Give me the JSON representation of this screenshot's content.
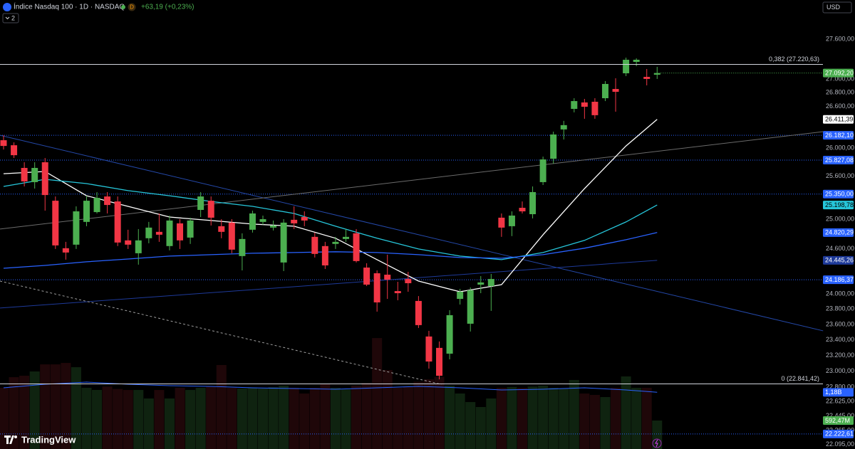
{
  "header": {
    "symbol": "Índice Nasdaq 100 · 1D · NASDAQ",
    "badge": "D",
    "change": "+63,19 (+0,23%)",
    "indicators_count": "2",
    "currency": "USD",
    "brand": "TradingView"
  },
  "chart_data": {
    "type": "candlestick",
    "log_scale": true,
    "ylim": [
      22040,
      28200
    ],
    "yticks": [
      {
        "value": 27600,
        "label": "27.600,00"
      },
      {
        "value": 27000,
        "label": "27.000,00"
      },
      {
        "value": 26800,
        "label": "26.800,00"
      },
      {
        "value": 26600,
        "label": "26.600,00"
      },
      {
        "value": 26000,
        "label": "26.000,00"
      },
      {
        "value": 25600,
        "label": "25.600,00"
      },
      {
        "value": 25000,
        "label": "25.000,00"
      },
      {
        "value": 24600,
        "label": "24.600,00"
      },
      {
        "value": 24000,
        "label": "24.000,00"
      },
      {
        "value": 23800,
        "label": "23.800,00"
      },
      {
        "value": 23600,
        "label": "23.600,00"
      },
      {
        "value": 23400,
        "label": "23.400,00"
      },
      {
        "value": 23200,
        "label": "23.200,00"
      },
      {
        "value": 23000,
        "label": "23.000,00"
      },
      {
        "value": 22800,
        "label": "22.800,00"
      },
      {
        "value": 22625,
        "label": "22.625,00"
      },
      {
        "value": 22445,
        "label": "22.445,00"
      },
      {
        "value": 22265,
        "label": "22.265,00"
      },
      {
        "value": 22095,
        "label": "22.095,00"
      }
    ],
    "series": [
      {
        "up_color": "#4caf50",
        "down_color": "#f23645",
        "last_label": "27.092,20",
        "open": [
          26111,
          26039,
          25717,
          25517,
          25797,
          25258,
          24608,
          24656,
          24966,
          25101,
          25317,
          25248,
          24714,
          24540,
          24743,
          24830,
          24637,
          24946,
          24752,
          25131,
          25258,
          24907,
          24956,
          24502,
          24859,
          24966,
          24888,
          24416,
          24995,
          25033,
          24762,
          24637,
          24666,
          24733,
          24810,
          24348,
          24272,
          24253,
          24036,
          24196,
          23906,
          23444,
          23298,
          23224,
          23933,
          23609,
          24121,
          24102,
          25024,
          24907,
          25160,
          25072,
          25517,
          25847,
          26266,
          26564,
          26658,
          26668,
          26720,
          26856,
          27088,
          27258,
          27035,
          27067
        ],
        "high": [
          26182,
          26080,
          25797,
          25797,
          25857,
          25317,
          24694,
          25180,
          25327,
          25378,
          25378,
          25317,
          24859,
          24868,
          24966,
          25082,
          25053,
          25004,
          25024,
          25378,
          25317,
          25004,
          25004,
          24810,
          25121,
          25053,
          24985,
          25004,
          25180,
          25111,
          24820,
          24694,
          24762,
          24868,
          24868,
          24406,
          24310,
          24521,
          24159,
          24291,
          23970,
          23517,
          23380,
          23785,
          24065,
          24083,
          24234,
          24263,
          25082,
          25111,
          25248,
          25457,
          25877,
          26234,
          26390,
          26720,
          26710,
          26720,
          26972,
          27014,
          27322,
          27311,
          27152,
          27184
        ],
        "low": [
          25978,
          25857,
          25457,
          25427,
          25121,
          24598,
          24454,
          24598,
          24907,
          25082,
          25082,
          24637,
          24598,
          24387,
          24675,
          24694,
          24579,
          24598,
          24666,
          25033,
          24917,
          24743,
          24540,
          24310,
          24820,
          24927,
          24849,
          24301,
          24868,
          24907,
          24483,
          24329,
          24598,
          24694,
          24416,
          24102,
          23766,
          23933,
          23915,
          24027,
          23554,
          23034,
          22899,
          23152,
          23859,
          23508,
          24008,
          23776,
          24762,
          24772,
          25082,
          25014,
          25477,
          25777,
          26121,
          26513,
          26420,
          26420,
          26678,
          26523,
          27046,
          27194,
          26909,
          27004
        ],
        "close": [
          26029,
          25897,
          25527,
          25717,
          25337,
          24646,
          24550,
          25111,
          25258,
          25298,
          25199,
          24685,
          24656,
          24714,
          24888,
          24791,
          24985,
          24714,
          24985,
          25317,
          25024,
          24830,
          24589,
          24733,
          25082,
          25004,
          24917,
          24956,
          24946,
          24985,
          24531,
          24377,
          24694,
          24762,
          24435,
          24121,
          23887,
          24187,
          24008,
          24140,
          23591,
          23124,
          22944,
          23720,
          24027,
          24046,
          24150,
          24196,
          24888,
          25053,
          25111,
          25378,
          25837,
          26193,
          26328,
          26678,
          26595,
          26472,
          26930,
          26814,
          27290,
          27290,
          27004,
          27092.2
        ]
      }
    ],
    "indicator_x": [
      0,
      4,
      8,
      12,
      16,
      20,
      24,
      28,
      32,
      36,
      40,
      44,
      48,
      52,
      56,
      60,
      63
    ],
    "indicators": [
      {
        "color": "#ffffff",
        "last_label": "26.411,39",
        "values": [
          25636,
          25667,
          25327,
          25180,
          25033,
          24985,
          24936,
          24907,
          24743,
          24454,
          24168,
          24027,
          24121,
          24791,
          25427,
          26029,
          26411.39
        ]
      },
      {
        "color": "#26c6da",
        "last_label": "25.198,78",
        "values": [
          25457,
          25557,
          25497,
          25398,
          25327,
          25248,
          25180,
          25082,
          24907,
          24743,
          24598,
          24502,
          24454,
          24550,
          24714,
          24966,
          25198.78
        ]
      },
      {
        "color": "#2962ff",
        "last_label": "24.820,29",
        "values": [
          24339,
          24377,
          24425,
          24463,
          24502,
          24521,
          24540,
          24550,
          24560,
          24550,
          24521,
          24483,
          24473,
          24521,
          24608,
          24723,
          24820.29
        ]
      }
    ],
    "trendlines": [
      {
        "color": "#2448a8",
        "dash": false,
        "x": [
          -0.34,
          79
        ],
        "values": [
          26182,
          23517
        ]
      },
      {
        "color": "#6b6b6b",
        "dash": false,
        "x": [
          -0.34,
          79
        ],
        "values": [
          24868,
          26234
        ]
      },
      {
        "color": "#1e3a9a",
        "dash": false,
        "x": [
          -0.34,
          63
        ],
        "values": [
          23813,
          24445.26
        ],
        "last_label": "24.445,26"
      },
      {
        "color": "#9e9e9e",
        "dash": true,
        "x": [
          -0.34,
          42.2
        ],
        "values": [
          24168,
          22836
        ]
      }
    ],
    "horizontal_lines": [
      {
        "value": 26182.1,
        "label": "26.182,10",
        "color": "#2962ff"
      },
      {
        "value": 25827.08,
        "label": "25.827,08",
        "color": "#2962ff"
      },
      {
        "value": 25350.0,
        "label": "25.350,00",
        "color": "#2962ff"
      },
      {
        "value": 24186.37,
        "label": "24.186,37",
        "color": "#2962ff"
      },
      {
        "value": 22222.61,
        "label": "22.222,61",
        "color": "#2962ff"
      }
    ],
    "fib_levels": [
      {
        "value": 27220.63,
        "label": "0,382 (27.220,63)"
      },
      {
        "value": 22841.42,
        "label": "0 (22.841,42)"
      }
    ],
    "volume": {
      "ylim": [
        0,
        2370
      ],
      "last_label": "592,47M",
      "values": [
        1274,
        1496,
        1525,
        1614,
        1762,
        1762,
        1792,
        1703,
        1274,
        1230,
        1300,
        1250,
        1229,
        1229,
        1052,
        1229,
        1052,
        1274,
        1229,
        1274,
        1303,
        1748,
        1274,
        1259,
        1274,
        1259,
        1290,
        1320,
        1274,
        1155,
        1274,
        1350,
        1274,
        1240,
        1320,
        1380,
        2310,
        1644,
        1274,
        1300,
        1400,
        1450,
        1500,
        1320,
        1155,
        977,
        874,
        1052,
        1274,
        1290,
        1274,
        1300,
        1320,
        1274,
        1260,
        1437,
        1155,
        1126,
        1081,
        1274,
        1511,
        1274,
        1274,
        592.47
      ],
      "ma": {
        "color": "#2962ff",
        "last_label": "1,18B",
        "values": [
          1274,
          1348,
          1392,
          1348,
          1318,
          1303,
          1274,
          1259,
          1244,
          1274,
          1303,
          1274,
          1229,
          1244,
          1274,
          1229,
          1180
        ]
      }
    }
  }
}
